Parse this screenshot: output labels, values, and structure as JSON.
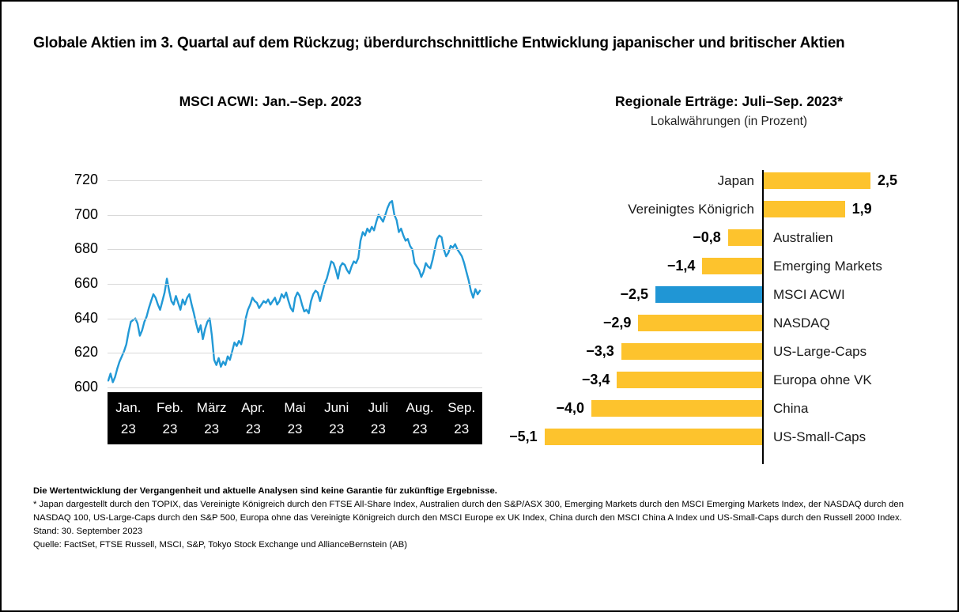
{
  "header": {
    "title": "Globale Aktien im 3. Quartal auf dem Rückzug; überdurchschnittliche Entwicklung japanischer und britischer Aktien"
  },
  "chart_data": [
    {
      "type": "line",
      "title": "MSCI ACWI: Jan.–Sep. 2023",
      "ylabel": "",
      "xlabel": "",
      "ylim": [
        600,
        720
      ],
      "yticks": [
        600,
        620,
        640,
        660,
        680,
        700,
        720
      ],
      "grid": true,
      "x_categories": [
        "Jan.",
        "Feb.",
        "März",
        "Apr.",
        "Mai",
        "Juni",
        "Juli",
        "Aug.",
        "Sep."
      ],
      "x_year_label": "23",
      "line_color": "#2299D6",
      "series": [
        {
          "name": "MSCI ACWI",
          "values": [
            604,
            608,
            603,
            606,
            611,
            615,
            618,
            621,
            625,
            632,
            638,
            639,
            640,
            637,
            630,
            633,
            638,
            641,
            646,
            650,
            654,
            652,
            648,
            645,
            650,
            655,
            663,
            656,
            650,
            648,
            653,
            649,
            645,
            651,
            648,
            652,
            654,
            648,
            643,
            637,
            632,
            636,
            628,
            634,
            638,
            640,
            630,
            616,
            613,
            617,
            612,
            615,
            613,
            618,
            616,
            621,
            626,
            624,
            627,
            625,
            631,
            640,
            645,
            648,
            652,
            650,
            649,
            646,
            648,
            650,
            649,
            651,
            648,
            650,
            652,
            648,
            650,
            654,
            652,
            655,
            650,
            646,
            644,
            652,
            655,
            653,
            648,
            644,
            645,
            643,
            650,
            654,
            656,
            655,
            650,
            655,
            660,
            663,
            668,
            673,
            672,
            668,
            663,
            670,
            672,
            671,
            668,
            666,
            670,
            673,
            672,
            675,
            685,
            690,
            688,
            692,
            690,
            693,
            691,
            696,
            700,
            698,
            696,
            700,
            704,
            707,
            708,
            700,
            697,
            690,
            692,
            688,
            685,
            686,
            682,
            680,
            672,
            670,
            668,
            664,
            667,
            672,
            670,
            669,
            674,
            680,
            686,
            688,
            687,
            680,
            676,
            678,
            682,
            681,
            683,
            680,
            678,
            676,
            672,
            667,
            662,
            656,
            652,
            657,
            654,
            656
          ]
        }
      ]
    },
    {
      "type": "bar",
      "title": "Regionale Erträge: Juli–Sep. 2023*",
      "subtitle": "Lokalwährungen (in Prozent)",
      "orientation": "horizontal-diverging",
      "categories": [
        "Japan",
        "Vereinigtes Königrich",
        "Australien",
        "Emerging Markets",
        "MSCI ACWI",
        "NASDAQ",
        "US-Large-Caps",
        "Europa ohne VK",
        "China",
        "US-Small-Caps"
      ],
      "values": [
        2.5,
        1.9,
        -0.8,
        -1.4,
        -2.5,
        -2.9,
        -3.3,
        -3.4,
        -4.0,
        -5.1
      ],
      "value_labels": [
        "2,5",
        "1,9",
        "−0,8",
        "−1,4",
        "−2,5",
        "−2,9",
        "−3,3",
        "−3,4",
        "−4,0",
        "−5,1"
      ],
      "bar_color": "#FDC32D",
      "highlight_color": "#2096D5",
      "highlight_category": "MSCI ACWI"
    }
  ],
  "footer": {
    "disclaimer": "Die Wertentwicklung der Vergangenheit und aktuelle Analysen sind keine Garantie für zukünftige Ergebnisse.",
    "footnote": "* Japan dargestellt durch den TOPIX, das Vereinigte Königreich durch den FTSE All-Share Index, Australien durch den S&P/ASX 300, Emerging Markets durch den MSCI Emerging Markets Index, der NASDAQ durch den NASDAQ 100, US-Large-Caps durch den S&P 500, Europa ohne das Vereinigte Königreich durch den MSCI Europe ex UK Index, China durch den MSCI China A Index und US-Small-Caps durch den Russell 2000 Index.",
    "stand": "Stand: 30. September 2023",
    "quelle": "Quelle: FactSet, FTSE Russell, MSCI, S&P, Tokyo Stock Exchange und AllianceBernstein (AB)"
  }
}
